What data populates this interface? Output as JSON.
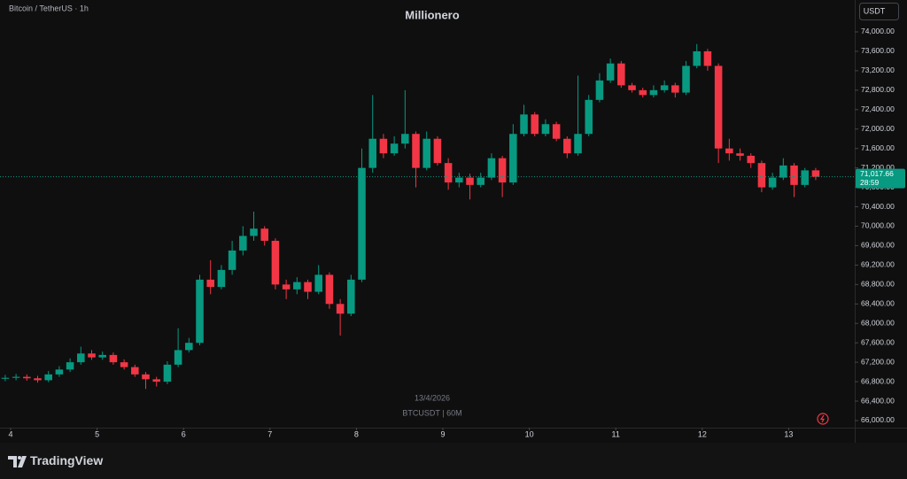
{
  "chart_data": {
    "type": "candlestick",
    "symbol_label": "Bitcoin / TetherUS · 1h",
    "title": "Millionero",
    "currency": "USDT",
    "watermark_date": "13/4/2026",
    "watermark_symbol": "BTCUSDT | 60M",
    "up_color": "#089981",
    "down_color": "#f23645",
    "x": [
      3.9375,
      4.0625,
      4.1875,
      4.3125,
      4.4375,
      4.5625,
      4.6875,
      4.8125,
      4.9375,
      5.0625,
      5.1875,
      5.3125,
      5.4375,
      5.5625,
      5.6875,
      5.8125,
      5.9375,
      6.0625,
      6.1875,
      6.3125,
      6.4375,
      6.5625,
      6.6875,
      6.8125,
      6.9375,
      7.0625,
      7.1875,
      7.3125,
      7.4375,
      7.5625,
      7.6875,
      7.8125,
      7.9375,
      8.0625,
      8.1875,
      8.3125,
      8.4375,
      8.5625,
      8.6875,
      8.8125,
      8.9375,
      9.0625,
      9.1875,
      9.3125,
      9.4375,
      9.5625,
      9.6875,
      9.8125,
      9.9375,
      10.0625,
      10.1875,
      10.3125,
      10.4375,
      10.5625,
      10.6875,
      10.8125,
      10.9375,
      11.0625,
      11.1875,
      11.3125,
      11.4375,
      11.5625,
      11.6875,
      11.8125,
      11.9375,
      12.0625,
      12.1875,
      12.3125,
      12.4375,
      12.5625,
      12.6875,
      12.8125,
      12.9375,
      13.0625,
      13.1875,
      13.3125
    ],
    "open": [
      66860,
      66880,
      66900,
      66870,
      66830,
      66950,
      67050,
      67200,
      67380,
      67300,
      67350,
      67200,
      67100,
      66950,
      66850,
      66800,
      67150,
      67450,
      67600,
      68900,
      68750,
      69100,
      69500,
      69800,
      69950,
      69700,
      68800,
      68700,
      68850,
      68650,
      69000,
      68400,
      68200,
      68900,
      71200,
      71800,
      71500,
      71700,
      71900,
      71200,
      71800,
      71300,
      70900,
      71000,
      70850,
      71000,
      71400,
      70900,
      71900,
      72300,
      71900,
      72100,
      71800,
      71500,
      71900,
      72600,
      73000,
      73350,
      72900,
      72800,
      72700,
      72800,
      72900,
      72750,
      73300,
      73600,
      73300,
      71600,
      71500,
      71450,
      71300,
      70800,
      71000,
      71250,
      70850,
      71150
    ],
    "high": [
      66940,
      66960,
      66950,
      66920,
      67020,
      67120,
      67280,
      67520,
      67450,
      67420,
      67400,
      67260,
      67150,
      67000,
      66900,
      67220,
      67900,
      67700,
      69000,
      69300,
      69200,
      69700,
      70000,
      70300,
      70000,
      69750,
      68900,
      68950,
      68900,
      69200,
      69050,
      68500,
      69000,
      71600,
      72700,
      71900,
      71850,
      72800,
      71950,
      71950,
      71850,
      71400,
      71100,
      71080,
      71100,
      71500,
      71450,
      72100,
      72500,
      72350,
      72200,
      72150,
      71850,
      73100,
      72700,
      73150,
      73450,
      73400,
      72950,
      72850,
      72900,
      73000,
      72950,
      73400,
      73750,
      73650,
      73350,
      71800,
      71600,
      71500,
      71350,
      71100,
      71400,
      71300,
      71200,
      71200
    ],
    "low": [
      66810,
      66830,
      66820,
      66780,
      66790,
      66900,
      67000,
      67150,
      67250,
      67250,
      67150,
      67050,
      66900,
      66650,
      66700,
      66750,
      67100,
      67400,
      67550,
      68600,
      68700,
      69000,
      69400,
      69700,
      69600,
      68700,
      68500,
      68600,
      68500,
      68600,
      68300,
      67750,
      68150,
      68850,
      71100,
      71400,
      71450,
      71600,
      70800,
      71150,
      71250,
      70750,
      70800,
      70550,
      70800,
      70950,
      70600,
      70850,
      71850,
      71850,
      71850,
      71750,
      71400,
      71450,
      71850,
      72550,
      72950,
      72850,
      72750,
      72650,
      72650,
      72750,
      72650,
      72700,
      73250,
      73200,
      71300,
      71350,
      71350,
      71200,
      70700,
      70750,
      70950,
      70600,
      70800,
      70950
    ],
    "close": [
      66880,
      66900,
      66870,
      66830,
      66950,
      67050,
      67200,
      67380,
      67300,
      67350,
      67200,
      67100,
      66950,
      66850,
      66800,
      67150,
      67450,
      67600,
      68900,
      68750,
      69100,
      69500,
      69800,
      69950,
      69700,
      68800,
      68700,
      68850,
      68650,
      69000,
      68400,
      68200,
      68900,
      71200,
      71800,
      71500,
      71700,
      71900,
      71200,
      71800,
      71300,
      70900,
      71000,
      70850,
      71000,
      71400,
      70900,
      71900,
      72300,
      71900,
      72100,
      71800,
      71500,
      71900,
      72600,
      73000,
      73350,
      72900,
      72800,
      72700,
      72800,
      72900,
      72750,
      73300,
      73600,
      73300,
      71600,
      71500,
      71450,
      71300,
      70800,
      71000,
      71250,
      70850,
      71150,
      71017.66
    ],
    "last_price": {
      "value": 71017.66,
      "label": "71,017.66"
    },
    "countdown": "28:59",
    "xlim": [
      3.877,
      13.764
    ],
    "xticks": [
      4,
      5,
      6,
      7,
      8,
      9,
      10,
      11,
      12,
      13
    ],
    "ylim": [
      65854,
      74656
    ],
    "yticks": [
      {
        "value": 66000,
        "label": "66,000.00"
      },
      {
        "value": 66400,
        "label": "66,400.00"
      },
      {
        "value": 66800,
        "label": "66,800.00"
      },
      {
        "value": 67200,
        "label": "67,200.00"
      },
      {
        "value": 67600,
        "label": "67,600.00"
      },
      {
        "value": 68000,
        "label": "68,000.00"
      },
      {
        "value": 68400,
        "label": "68,400.00"
      },
      {
        "value": 68800,
        "label": "68,800.00"
      },
      {
        "value": 69200,
        "label": "69,200.00"
      },
      {
        "value": 69600,
        "label": "69,600.00"
      },
      {
        "value": 70000,
        "label": "70,000.00"
      },
      {
        "value": 70400,
        "label": "70,400.00"
      },
      {
        "value": 70800,
        "label": "70,800.00"
      },
      {
        "value": 71200,
        "label": "71,200.00"
      },
      {
        "value": 71600,
        "label": "71,600.00"
      },
      {
        "value": 72000,
        "label": "72,000.00"
      },
      {
        "value": 72400,
        "label": "72,400.00"
      },
      {
        "value": 72800,
        "label": "72,800.00"
      },
      {
        "value": 73200,
        "label": "73,200.00"
      },
      {
        "value": 73600,
        "label": "73,600.00"
      },
      {
        "value": 74000,
        "label": "74,000.00"
      }
    ]
  },
  "footer": {
    "brand": "TradingView"
  }
}
